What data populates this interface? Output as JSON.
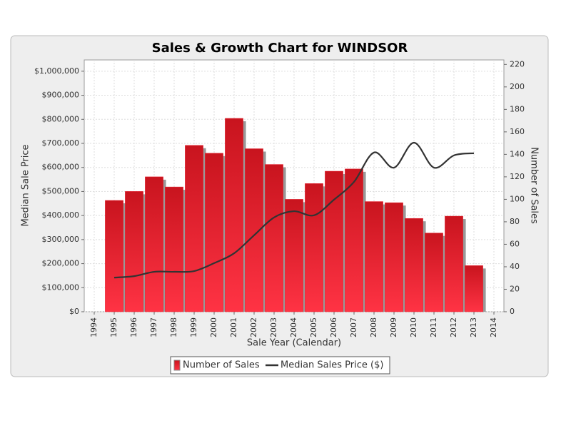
{
  "chart_data": {
    "type": "bar_line",
    "title": "Sales & Growth Chart for WINDSOR",
    "xlabel": "Sale Year (Calendar)",
    "ylabel": "Median Sale Price",
    "y2label": "Number of Sales",
    "x": [
      1995,
      1996,
      1997,
      1998,
      1999,
      2000,
      2001,
      2002,
      2003,
      2004,
      2005,
      2006,
      2007,
      2008,
      2009,
      2010,
      2011,
      2012,
      2013
    ],
    "series": [
      {
        "name": "Number of Sales",
        "type": "bar",
        "axis": "y2",
        "color": "#e8202e",
        "values": [
          99,
          107,
          120,
          111,
          148,
          141,
          172,
          145,
          131,
          100,
          114,
          125,
          127,
          98,
          97,
          83,
          70,
          85,
          41
        ]
      },
      {
        "name": "Median Sales Price ($)",
        "type": "line",
        "axis": "y",
        "color": "#333333",
        "values": [
          142000,
          148000,
          166000,
          166000,
          169000,
          202000,
          243000,
          318000,
          392000,
          418000,
          401000,
          466000,
          540000,
          662000,
          599000,
          703000,
          599000,
          650000,
          659000
        ]
      }
    ],
    "xlim": [
      1993.5,
      2014.5
    ],
    "xticks": [
      1994,
      1995,
      1996,
      1997,
      1998,
      1999,
      2000,
      2001,
      2002,
      2003,
      2004,
      2005,
      2006,
      2007,
      2008,
      2009,
      2010,
      2011,
      2012,
      2013,
      2014
    ],
    "ylim": [
      0,
      1047000
    ],
    "yticks": [
      {
        "value": 0,
        "label": "$0"
      },
      {
        "value": 100000,
        "label": "$100,000"
      },
      {
        "value": 200000,
        "label": "$200,000"
      },
      {
        "value": 300000,
        "label": "$300,000"
      },
      {
        "value": 400000,
        "label": "$400,000"
      },
      {
        "value": 500000,
        "label": "$500,000"
      },
      {
        "value": 600000,
        "label": "$600,000"
      },
      {
        "value": 700000,
        "label": "$700,000"
      },
      {
        "value": 800000,
        "label": "$800,000"
      },
      {
        "value": 900000,
        "label": "$900,000"
      },
      {
        "value": 1000000,
        "label": "$1,000,000"
      }
    ],
    "y2lim": [
      0,
      224
    ],
    "y2ticks": [
      0,
      20,
      40,
      60,
      80,
      100,
      120,
      140,
      160,
      180,
      200,
      220
    ],
    "grid": true,
    "legend": "bottom"
  }
}
